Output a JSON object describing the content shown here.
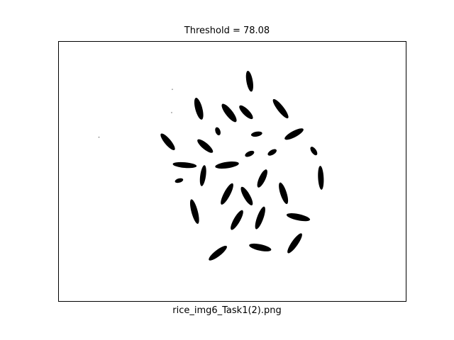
{
  "figure": {
    "title": "Threshold = 78.08",
    "xlabel": "rice_img6_Task1(2).png"
  },
  "image": {
    "description_free": true,
    "colors": {
      "foreground": "#000000",
      "background": "#ffffff",
      "frame": "#000000"
    }
  }
}
